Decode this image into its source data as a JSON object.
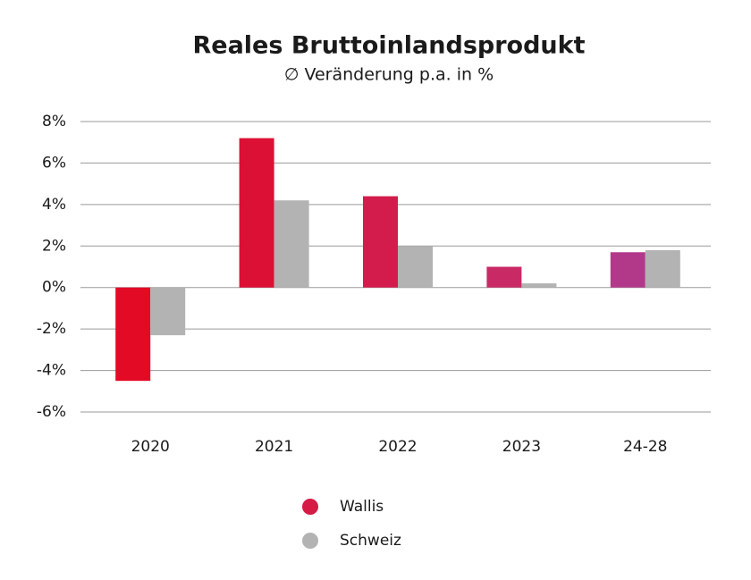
{
  "chart_data": {
    "type": "bar",
    "title": "Reales Bruttoinlandsprodukt",
    "subtitle": "∅ Veränderung p.a. in %",
    "categories": [
      "2020",
      "2021",
      "2022",
      "2023",
      "24-28"
    ],
    "series": [
      {
        "name": "Wallis",
        "color": "#d61a46",
        "bar_colors": [
          "#e30a25",
          "#dc0f35",
          "#d31c4c",
          "#c92a66",
          "#b2398a"
        ],
        "values": [
          -4.5,
          7.2,
          4.4,
          1.0,
          1.7
        ]
      },
      {
        "name": "Schweiz",
        "color": "#b3b3b3",
        "values": [
          -2.3,
          4.2,
          2.0,
          0.2,
          1.8
        ]
      }
    ],
    "ylim": [
      -6,
      8
    ],
    "yticks": [
      {
        "value": -6,
        "label": "-6%"
      },
      {
        "value": -4,
        "label": "-4%"
      },
      {
        "value": -2,
        "label": "-2%"
      },
      {
        "value": 0,
        "label": "0%"
      },
      {
        "value": 2,
        "label": "2%"
      },
      {
        "value": 4,
        "label": "4%"
      },
      {
        "value": 6,
        "label": "6%"
      },
      {
        "value": 8,
        "label": "8%"
      }
    ],
    "grid": true
  }
}
